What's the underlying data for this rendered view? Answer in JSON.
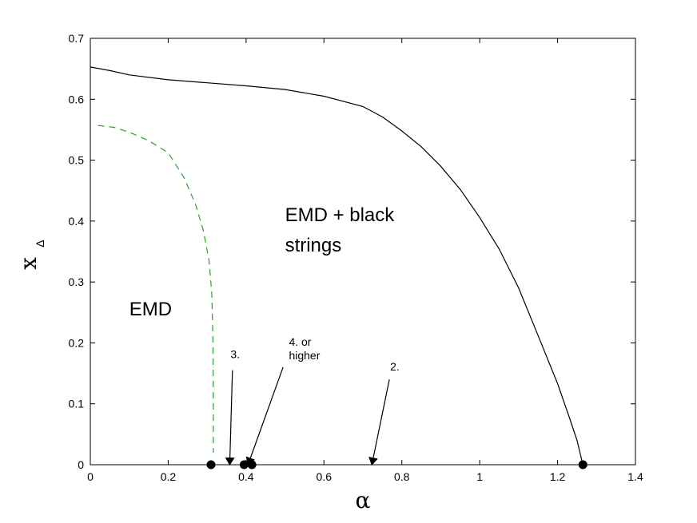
{
  "chart_data": {
    "type": "line",
    "xlabel": "α",
    "ylabel": "x",
    "ylabel_sub": "Δ",
    "xlim": [
      0,
      1.4
    ],
    "ylim": [
      0,
      0.7
    ],
    "xticks": [
      0,
      0.2,
      0.4,
      0.6,
      0.8,
      1,
      1.2,
      1.4
    ],
    "xtick_labels": [
      "0",
      "0.2",
      "0.4",
      "0.6",
      "0.8",
      "1",
      "1.2",
      "1.4"
    ],
    "yticks": [
      0,
      0.1,
      0.2,
      0.3,
      0.4,
      0.5,
      0.6,
      0.7
    ],
    "ytick_labels": [
      "0",
      "0.1",
      "0.2",
      "0.3",
      "0.4",
      "0.5",
      "0.6",
      "0.7"
    ],
    "grid": false,
    "series": [
      {
        "style": "solid",
        "color": "#000000",
        "x": [
          0,
          0.05,
          0.1,
          0.2,
          0.3,
          0.4,
          0.5,
          0.6,
          0.7,
          0.75,
          0.8,
          0.85,
          0.9,
          0.95,
          1.0,
          1.05,
          1.1,
          1.15,
          1.2,
          1.23,
          1.25,
          1.265
        ],
        "y": [
          0.653,
          0.647,
          0.64,
          0.632,
          0.627,
          0.622,
          0.616,
          0.605,
          0.588,
          0.571,
          0.548,
          0.522,
          0.49,
          0.452,
          0.406,
          0.354,
          0.29,
          0.212,
          0.133,
          0.078,
          0.04,
          0.0
        ]
      },
      {
        "style": "dashed",
        "color": "#2ca02c",
        "x": [
          0.02,
          0.06,
          0.1,
          0.15,
          0.2,
          0.24,
          0.27,
          0.29,
          0.305,
          0.312,
          0.315,
          0.316,
          0.316
        ],
        "y": [
          0.557,
          0.554,
          0.546,
          0.532,
          0.512,
          0.472,
          0.428,
          0.385,
          0.335,
          0.28,
          0.2,
          0.1,
          0.02
        ]
      }
    ],
    "points": [
      {
        "x": 0.31,
        "y": 0
      },
      {
        "x": 0.395,
        "y": 0
      },
      {
        "x": 0.415,
        "y": 0
      },
      {
        "x": 1.265,
        "y": 0
      }
    ],
    "annotations": [
      {
        "text": "EMD + black",
        "size": "big",
        "x": 0.5,
        "y": 0.4
      },
      {
        "text": "strings",
        "size": "big",
        "x": 0.5,
        "y": 0.35
      },
      {
        "text": "EMD",
        "size": "big",
        "x": 0.1,
        "y": 0.245
      },
      {
        "text": "3.",
        "size": "small",
        "x": 0.36,
        "y": 0.175
      },
      {
        "text": "4. or",
        "size": "small",
        "x": 0.51,
        "y": 0.195
      },
      {
        "text": "higher",
        "size": "small",
        "x": 0.51,
        "y": 0.173
      },
      {
        "text": "2.",
        "size": "small",
        "x": 0.77,
        "y": 0.155
      }
    ],
    "arrows": [
      {
        "from": [
          0.365,
          0.155
        ],
        "to": [
          0.358,
          0.0
        ]
      },
      {
        "from": [
          0.495,
          0.16
        ],
        "to": [
          0.405,
          0.0
        ]
      },
      {
        "from": [
          0.768,
          0.14
        ],
        "to": [
          0.723,
          0.0
        ]
      }
    ]
  }
}
